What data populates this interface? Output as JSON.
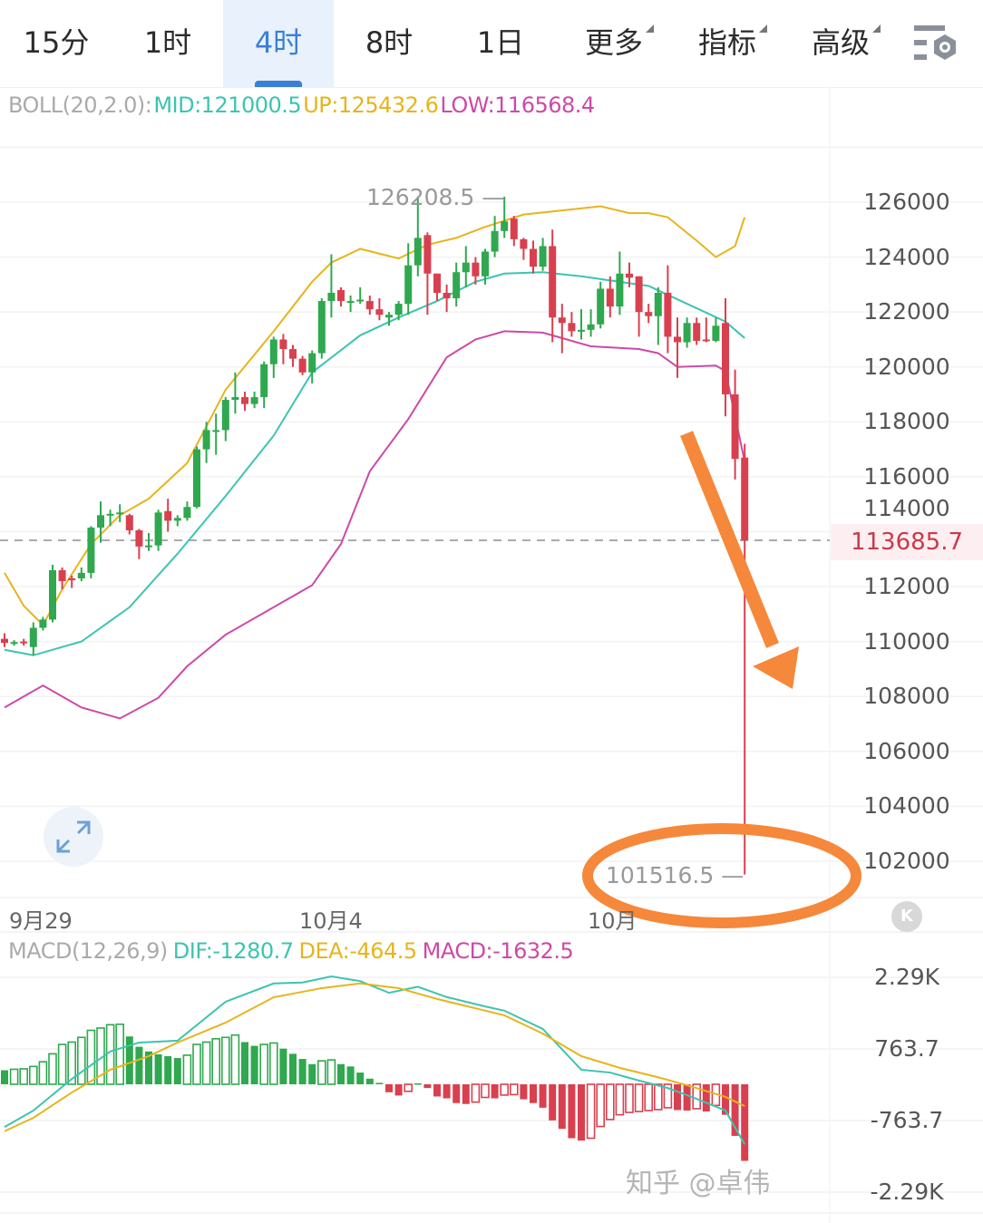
{
  "tabs": [
    {
      "label": "15分",
      "selected": false,
      "dropdown": false
    },
    {
      "label": "1时",
      "selected": false,
      "dropdown": false
    },
    {
      "label": "4时",
      "selected": true,
      "dropdown": false
    },
    {
      "label": "8时",
      "selected": false,
      "dropdown": false
    },
    {
      "label": "1日",
      "selected": false,
      "dropdown": false
    },
    {
      "label": "更多",
      "selected": false,
      "dropdown": true
    },
    {
      "label": "指标",
      "selected": false,
      "dropdown": true
    },
    {
      "label": "高级",
      "selected": false,
      "dropdown": true
    }
  ],
  "settings_icon": "chart-settings-icon",
  "boll_legend": {
    "name": "BOLL(20,2.0):",
    "mid": "MID:121000.5",
    "up": "UP:125432.6",
    "low": "LOW:116568.4"
  },
  "macd_legend": {
    "name": "MACD(12,26,9)",
    "dif": "DIF:-1280.7",
    "dea": "DEA:-464.5",
    "macd": "MACD:-1632.5"
  },
  "colors": {
    "up_candle": "#2fa84f",
    "down_candle": "#d9404f",
    "boll_mid": "#3cc4b0",
    "boll_up": "#e8b41c",
    "boll_low": "#cc4aa8",
    "dif": "#3cc4b0",
    "dea": "#e8b41c",
    "annotation": "#f5883a",
    "selected_tab": "#3a7fd5"
  },
  "price_axis": {
    "labels": [
      "126000",
      "124000",
      "122000",
      "120000",
      "118000",
      "116000",
      "114000",
      "112000",
      "110000",
      "108000",
      "106000",
      "104000",
      "102000"
    ]
  },
  "current_price": "113685.7",
  "max_label": "126208.5",
  "min_label": "101516.5",
  "x_axis": {
    "labels": [
      "9月29",
      "10月4",
      "10月"
    ]
  },
  "macd_axis": {
    "labels": [
      "2.29K",
      "763.7",
      "-763.7",
      "-2.29K"
    ]
  },
  "k_button": "K",
  "watermark": "知乎 @卓伟",
  "chart_data": [
    {
      "type": "candlestick",
      "title": "BOLL(20,2.0)",
      "timeframe": "4时",
      "ylim": [
        101000,
        127500
      ],
      "grid": true,
      "ohlc": [
        [
          110100,
          110300,
          109800,
          109950
        ],
        [
          109950,
          110050,
          109850,
          109980
        ],
        [
          110000,
          110100,
          109850,
          109950
        ],
        [
          109800,
          110700,
          109500,
          110500
        ],
        [
          110500,
          110900,
          110400,
          110800
        ],
        [
          110800,
          112800,
          110700,
          112600
        ],
        [
          112600,
          112700,
          111900,
          112200
        ],
        [
          112300,
          112400,
          111950,
          112250
        ],
        [
          112300,
          112700,
          112200,
          112500
        ],
        [
          112500,
          114200,
          112300,
          114150
        ],
        [
          114150,
          115100,
          113600,
          114600
        ],
        [
          114600,
          114800,
          114200,
          114650
        ],
        [
          114650,
          115000,
          114350,
          114700
        ],
        [
          114600,
          114650,
          113900,
          114050
        ],
        [
          114050,
          114100,
          113000,
          113460
        ],
        [
          113450,
          113950,
          113300,
          113500
        ],
        [
          113500,
          114800,
          113300,
          114700
        ],
        [
          114750,
          115200,
          114000,
          114400
        ],
        [
          114400,
          114600,
          114200,
          114500
        ],
        [
          114500,
          115100,
          114400,
          114900
        ],
        [
          114900,
          117100,
          114850,
          117000
        ],
        [
          117000,
          118000,
          116500,
          117700
        ],
        [
          117700,
          118300,
          116800,
          117700
        ],
        [
          117700,
          118900,
          117300,
          118800
        ],
        [
          118800,
          119800,
          118300,
          118900
        ],
        [
          118900,
          119100,
          118400,
          118650
        ],
        [
          118650,
          119100,
          118500,
          118900
        ],
        [
          118900,
          120200,
          118500,
          120100
        ],
        [
          120100,
          121100,
          119600,
          121000
        ],
        [
          121000,
          121200,
          120100,
          120650
        ],
        [
          120650,
          120800,
          120000,
          120300
        ],
        [
          120300,
          120400,
          119700,
          119800
        ],
        [
          119800,
          120600,
          119400,
          120500
        ],
        [
          120500,
          122500,
          120300,
          122400
        ],
        [
          122400,
          124100,
          121800,
          122700
        ],
        [
          122800,
          122900,
          122200,
          122400
        ],
        [
          122400,
          122600,
          122000,
          122400
        ],
        [
          122400,
          122900,
          122300,
          122450
        ],
        [
          122400,
          122600,
          121900,
          122100
        ],
        [
          122100,
          122500,
          121700,
          121900
        ],
        [
          121800,
          122000,
          121500,
          121900
        ],
        [
          121900,
          122400,
          121700,
          122300
        ],
        [
          122300,
          124500,
          121900,
          123700
        ],
        [
          123700,
          126208.5,
          123300,
          124700
        ],
        [
          124800,
          124900,
          121900,
          123400
        ],
        [
          123400,
          123400,
          122400,
          122700
        ],
        [
          122700,
          123000,
          122000,
          122500
        ],
        [
          122500,
          123800,
          122200,
          123450
        ],
        [
          123450,
          124400,
          122900,
          123800
        ],
        [
          123800,
          124000,
          123000,
          123300
        ],
        [
          123300,
          124300,
          123000,
          124200
        ],
        [
          124200,
          125500,
          124000,
          124950
        ],
        [
          124950,
          126200,
          124700,
          125300
        ],
        [
          125400,
          125500,
          124400,
          124650
        ],
        [
          124650,
          124700,
          123900,
          124300
        ],
        [
          124300,
          124600,
          123400,
          123650
        ],
        [
          123650,
          124700,
          123500,
          124400
        ],
        [
          124400,
          125000,
          120900,
          121800
        ],
        [
          121800,
          122300,
          120500,
          121600
        ],
        [
          121600,
          122000,
          121100,
          121300
        ],
        [
          121350,
          122100,
          121000,
          121350
        ],
        [
          121350,
          122100,
          121100,
          121550
        ],
        [
          121550,
          123100,
          121400,
          122850
        ],
        [
          122850,
          123300,
          121800,
          122200
        ],
        [
          122200,
          124200,
          121900,
          123400
        ],
        [
          123400,
          123800,
          122900,
          123250
        ],
        [
          123300,
          123300,
          121100,
          122000
        ],
        [
          122000,
          122300,
          121600,
          121850
        ],
        [
          121850,
          122900,
          120800,
          122700
        ],
        [
          122700,
          123700,
          120500,
          121100
        ],
        [
          121100,
          121800,
          119600,
          120900
        ],
        [
          120900,
          121800,
          120700,
          121600
        ],
        [
          121600,
          121800,
          120800,
          120950
        ],
        [
          121000,
          121800,
          120900,
          120950
        ],
        [
          120950,
          121800,
          120900,
          121500
        ],
        [
          121600,
          122500,
          118200,
          119000
        ],
        [
          119000,
          119900,
          115900,
          116650
        ],
        [
          116700,
          117200,
          101516.5,
          113685.7
        ]
      ],
      "boll_up": [
        [
          0,
          112500
        ],
        [
          2,
          111300
        ],
        [
          4,
          110600
        ],
        [
          6,
          111900
        ],
        [
          9,
          113550
        ],
        [
          12,
          114600
        ],
        [
          15,
          115200
        ],
        [
          19,
          116500
        ],
        [
          23,
          119170
        ],
        [
          28,
          121300
        ],
        [
          32,
          123100
        ],
        [
          34,
          123800
        ],
        [
          37,
          124300
        ],
        [
          41,
          123950
        ],
        [
          44,
          124450
        ],
        [
          47,
          124700
        ],
        [
          50,
          125100
        ],
        [
          54,
          125550
        ],
        [
          58,
          125700
        ],
        [
          62,
          125850
        ],
        [
          65,
          125600
        ],
        [
          67,
          125600
        ],
        [
          69,
          125450
        ],
        [
          72,
          124600
        ],
        [
          74,
          124000
        ],
        [
          76,
          124400
        ],
        [
          77,
          125450
        ]
      ],
      "boll_mid": [
        [
          0,
          109700
        ],
        [
          3,
          109500
        ],
        [
          8,
          110000
        ],
        [
          13,
          111250
        ],
        [
          18,
          113200
        ],
        [
          23,
          115300
        ],
        [
          28,
          117500
        ],
        [
          32,
          119800
        ],
        [
          37,
          121150
        ],
        [
          41,
          121800
        ],
        [
          45,
          122400
        ],
        [
          49,
          123100
        ],
        [
          52,
          123400
        ],
        [
          56,
          123450
        ],
        [
          60,
          123300
        ],
        [
          64,
          123100
        ],
        [
          67,
          122950
        ],
        [
          71,
          122300
        ],
        [
          75,
          121650
        ],
        [
          77,
          121050
        ]
      ],
      "boll_low": [
        [
          0,
          107600
        ],
        [
          4,
          108400
        ],
        [
          8,
          107600
        ],
        [
          12,
          107200
        ],
        [
          16,
          107950
        ],
        [
          19,
          109100
        ],
        [
          23,
          110250
        ],
        [
          28,
          111250
        ],
        [
          32,
          112050
        ],
        [
          35,
          113550
        ],
        [
          38,
          116200
        ],
        [
          42,
          118100
        ],
        [
          46,
          120350
        ],
        [
          49,
          121000
        ],
        [
          52,
          121300
        ],
        [
          56,
          121250
        ],
        [
          61,
          120750
        ],
        [
          66,
          120650
        ],
        [
          68,
          120500
        ],
        [
          70,
          120000
        ],
        [
          74,
          120050
        ],
        [
          75,
          119850
        ],
        [
          77,
          116550
        ]
      ]
    },
    {
      "type": "bar+line",
      "title": "MACD(12,26,9)",
      "ylim": [
        -2290,
        2290
      ],
      "grid": true,
      "histogram": [
        300,
        320,
        330,
        380,
        480,
        650,
        850,
        900,
        1000,
        1150,
        1200,
        1270,
        1280,
        1020,
        800,
        700,
        640,
        600,
        560,
        620,
        850,
        900,
        970,
        1000,
        1050,
        900,
        820,
        850,
        880,
        760,
        650,
        540,
        430,
        500,
        520,
        430,
        380,
        250,
        120,
        30,
        -170,
        -240,
        -150,
        20,
        -80,
        -260,
        -300,
        -400,
        -420,
        -380,
        -280,
        -300,
        -230,
        -220,
        -320,
        -400,
        -500,
        -770,
        -950,
        -1150,
        -1200,
        -1150,
        -900,
        -750,
        -650,
        -600,
        -580,
        -560,
        -540,
        -500,
        -550,
        -560,
        -520,
        -580,
        -450,
        -650,
        -1100,
        -1632.5
      ],
      "dif": [
        [
          0,
          -910
        ],
        [
          3,
          -560
        ],
        [
          7,
          115
        ],
        [
          11,
          700
        ],
        [
          14,
          890
        ],
        [
          18,
          930
        ],
        [
          23,
          1760
        ],
        [
          28,
          2150
        ],
        [
          31,
          2170
        ],
        [
          34,
          2300
        ],
        [
          37,
          2200
        ],
        [
          40,
          1950
        ],
        [
          43,
          2080
        ],
        [
          46,
          1860
        ],
        [
          50,
          1660
        ],
        [
          52,
          1570
        ],
        [
          56,
          1180
        ],
        [
          60,
          310
        ],
        [
          63,
          250
        ],
        [
          66,
          80
        ],
        [
          69,
          -80
        ],
        [
          72,
          -310
        ],
        [
          75,
          -560
        ],
        [
          77,
          -1280.7
        ]
      ],
      "dea": [
        [
          0,
          -1000
        ],
        [
          3,
          -715
        ],
        [
          7,
          -175
        ],
        [
          11,
          310
        ],
        [
          15,
          600
        ],
        [
          18,
          890
        ],
        [
          23,
          1315
        ],
        [
          28,
          1855
        ],
        [
          33,
          2050
        ],
        [
          37,
          2150
        ],
        [
          41,
          2050
        ],
        [
          45,
          1820
        ],
        [
          49,
          1620
        ],
        [
          52,
          1470
        ],
        [
          56,
          1080
        ],
        [
          60,
          600
        ],
        [
          64,
          350
        ],
        [
          68,
          150
        ],
        [
          71,
          -20
        ],
        [
          75,
          -270
        ],
        [
          77,
          -464.5
        ]
      ]
    }
  ]
}
